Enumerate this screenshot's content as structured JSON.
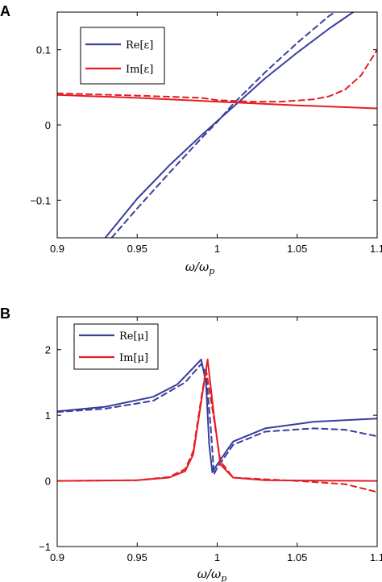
{
  "colors": {
    "blue": "#3a3e9c",
    "red": "#e31e24"
  },
  "chart_data": [
    {
      "panel": "A",
      "type": "line",
      "xlabel": "ω/ω",
      "xlabel_sub": "p",
      "xlim": [
        0.9,
        1.1
      ],
      "ylim": [
        -0.15,
        0.15
      ],
      "xticks": [
        0.9,
        0.95,
        1,
        1.05,
        1.1
      ],
      "xtick_labels": [
        "0.9",
        "0.95",
        "1",
        "1.05",
        "1.1"
      ],
      "yticks": [
        -0.1,
        0,
        0.1
      ],
      "ytick_labels": [
        "−0.1",
        "0",
        "0.1"
      ],
      "legend_placement": "top-left",
      "series": [
        {
          "name": "Re[ε]",
          "color": "blue",
          "dash": false,
          "x": [
            0.93,
            0.95,
            0.97,
            0.99,
            1.0,
            1.01,
            1.02,
            1.03,
            1.05,
            1.07,
            1.085
          ],
          "y": [
            -0.15,
            -0.098,
            -0.054,
            -0.014,
            0.005,
            0.024,
            0.043,
            0.062,
            0.096,
            0.128,
            0.15
          ]
        },
        {
          "name": "",
          "color": "blue",
          "dash": true,
          "x": [
            0.934,
            0.95,
            0.97,
            0.99,
            1.0,
            1.01,
            1.03,
            1.05,
            1.07,
            1.08
          ],
          "y": [
            -0.15,
            -0.111,
            -0.064,
            -0.018,
            0.004,
            0.028,
            0.07,
            0.109,
            0.145,
            0.158
          ]
        },
        {
          "name": "Im[ε]",
          "color": "red",
          "dash": false,
          "x": [
            0.9,
            0.95,
            1.0,
            1.05,
            1.1
          ],
          "y": [
            0.04,
            0.036,
            0.031,
            0.026,
            0.022
          ]
        },
        {
          "name": "",
          "color": "red",
          "dash": true,
          "x": [
            0.9,
            0.95,
            0.99,
            1.0,
            1.02,
            1.04,
            1.06,
            1.07,
            1.08,
            1.09,
            1.1
          ],
          "y": [
            0.042,
            0.039,
            0.036,
            0.033,
            0.031,
            0.031,
            0.034,
            0.038,
            0.047,
            0.066,
            0.1
          ]
        }
      ]
    },
    {
      "panel": "B",
      "type": "line",
      "xlabel": "ω/ω",
      "xlabel_sub": "p",
      "xlim": [
        0.9,
        1.1
      ],
      "ylim": [
        -1,
        2.5
      ],
      "xticks": [
        0.9,
        0.95,
        1,
        1.05,
        1.1
      ],
      "xtick_labels": [
        "0.9",
        "0.95",
        "1",
        "1.05",
        "1.1"
      ],
      "yticks": [
        -1,
        0,
        1,
        2
      ],
      "ytick_labels": [
        "−1",
        "0",
        "1",
        "2"
      ],
      "legend_placement": "top-left",
      "series": [
        {
          "name": "Re[μ]",
          "color": "blue",
          "dash": false,
          "x": [
            0.9,
            0.93,
            0.96,
            0.975,
            0.985,
            0.99,
            0.993,
            0.995,
            0.997,
            1.0,
            1.01,
            1.03,
            1.06,
            1.1
          ],
          "y": [
            1.06,
            1.13,
            1.28,
            1.47,
            1.72,
            1.85,
            1.5,
            0.55,
            0.13,
            0.25,
            0.6,
            0.8,
            0.9,
            0.95
          ]
        },
        {
          "name": "",
          "color": "blue",
          "dash": true,
          "x": [
            0.9,
            0.93,
            0.96,
            0.98,
            0.99,
            0.993,
            0.996,
            0.998,
            1.0,
            1.01,
            1.03,
            1.06,
            1.08,
            1.1
          ],
          "y": [
            1.05,
            1.1,
            1.22,
            1.5,
            1.78,
            1.65,
            0.8,
            0.1,
            0.2,
            0.55,
            0.75,
            0.8,
            0.78,
            0.68
          ]
        },
        {
          "name": "Im[μ]",
          "color": "red",
          "dash": false,
          "x": [
            0.9,
            0.95,
            0.97,
            0.98,
            0.985,
            0.99,
            0.994,
            0.998,
            1.002,
            1.01,
            1.03,
            1.1
          ],
          "y": [
            0.0,
            0.01,
            0.05,
            0.15,
            0.4,
            1.2,
            1.85,
            1.0,
            0.25,
            0.05,
            0.01,
            0.0
          ]
        },
        {
          "name": "",
          "color": "red",
          "dash": true,
          "x": [
            0.9,
            0.95,
            0.97,
            0.98,
            0.985,
            0.99,
            0.993,
            0.997,
            1.002,
            1.01,
            1.05,
            1.08,
            1.1
          ],
          "y": [
            0.0,
            0.01,
            0.06,
            0.18,
            0.45,
            1.25,
            1.7,
            1.1,
            0.3,
            0.05,
            0.0,
            -0.05,
            -0.17
          ]
        }
      ]
    }
  ]
}
